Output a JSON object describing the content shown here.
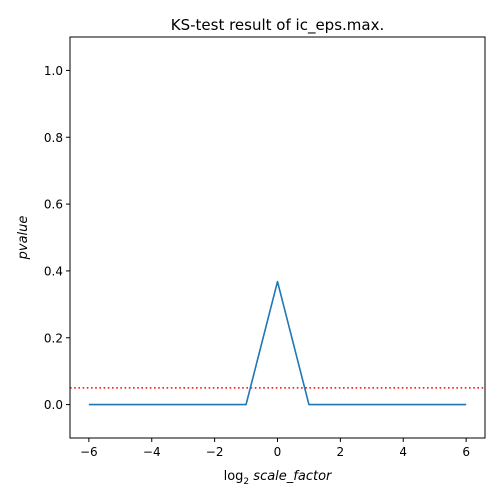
{
  "chart_data": {
    "type": "line",
    "title": "KS-test result of ic_eps.max.",
    "xlabel": {
      "prefix": "log",
      "subscript": "2",
      "variable": "scale_factor"
    },
    "ylabel": "pvalue",
    "xlim": [
      -6.6,
      6.6
    ],
    "ylim": [
      -0.1,
      1.1
    ],
    "x_ticks": [
      -6,
      -4,
      -2,
      0,
      2,
      4,
      6
    ],
    "x_tick_labels": [
      "−6",
      "−4",
      "−2",
      "0",
      "2",
      "4",
      "6"
    ],
    "y_ticks": [
      0.0,
      0.2,
      0.4,
      0.6,
      0.8,
      1.0
    ],
    "y_tick_labels": [
      "0.0",
      "0.2",
      "0.4",
      "0.6",
      "0.8",
      "1.0"
    ],
    "grid": false,
    "series": [
      {
        "x": [
          -6,
          -5,
          -4,
          -3,
          -2,
          -1,
          0,
          1,
          2,
          3,
          4,
          5,
          6
        ],
        "y": [
          0,
          0,
          0,
          0,
          0,
          0,
          0.368,
          0,
          0,
          0,
          0,
          0,
          0
        ],
        "color": "#1f77b4",
        "style": "solid"
      }
    ],
    "reference_lines": [
      {
        "orientation": "horizontal",
        "y": 0.05,
        "color": "#ff0000",
        "style": "dotted"
      }
    ]
  }
}
